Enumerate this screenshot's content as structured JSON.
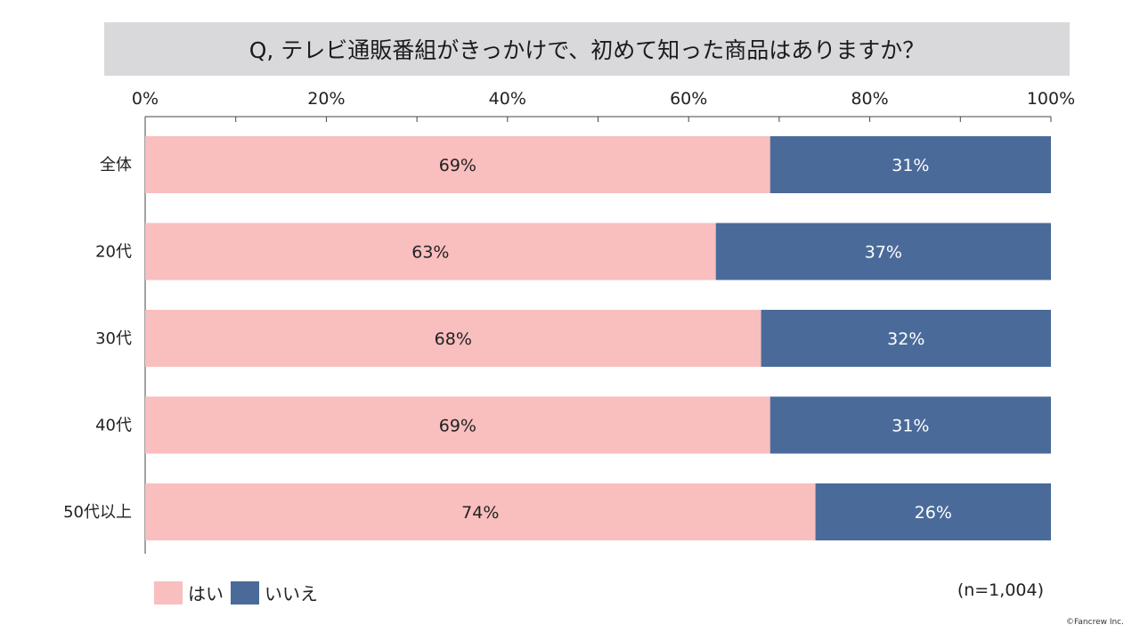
{
  "chart_data": {
    "type": "bar",
    "orientation": "horizontal",
    "stacked": true,
    "title": "Q, テレビ通販番組がきっかけで、初めて知った商品はありますか？",
    "categories": [
      "全体",
      "20代",
      "30代",
      "40代",
      "50代以上"
    ],
    "series": [
      {
        "name": "はい",
        "color": "#f9bebe",
        "values": [
          69,
          63,
          68,
          69,
          74
        ],
        "labels": [
          "69%",
          "63%",
          "68%",
          "69%",
          "74%"
        ]
      },
      {
        "name": "いいえ",
        "color": "#4a6b9a",
        "values": [
          31,
          37,
          32,
          31,
          26
        ],
        "labels": [
          "31%",
          "37%",
          "32%",
          "31%",
          "26%"
        ]
      }
    ],
    "xlim": [
      0,
      100
    ],
    "x_ticks": [
      "0%",
      "20%",
      "40%",
      "60%",
      "80%",
      "100%"
    ],
    "x_tick_values": [
      0,
      20,
      40,
      60,
      80,
      100
    ],
    "minor_tick_values": [
      10,
      30,
      50,
      70,
      90
    ],
    "axis_position": "top",
    "legend_position": "bottom-left",
    "grid": false,
    "sample_size": "(n=1,004)"
  },
  "footer": {
    "copyright": "©Fancrew Inc."
  }
}
